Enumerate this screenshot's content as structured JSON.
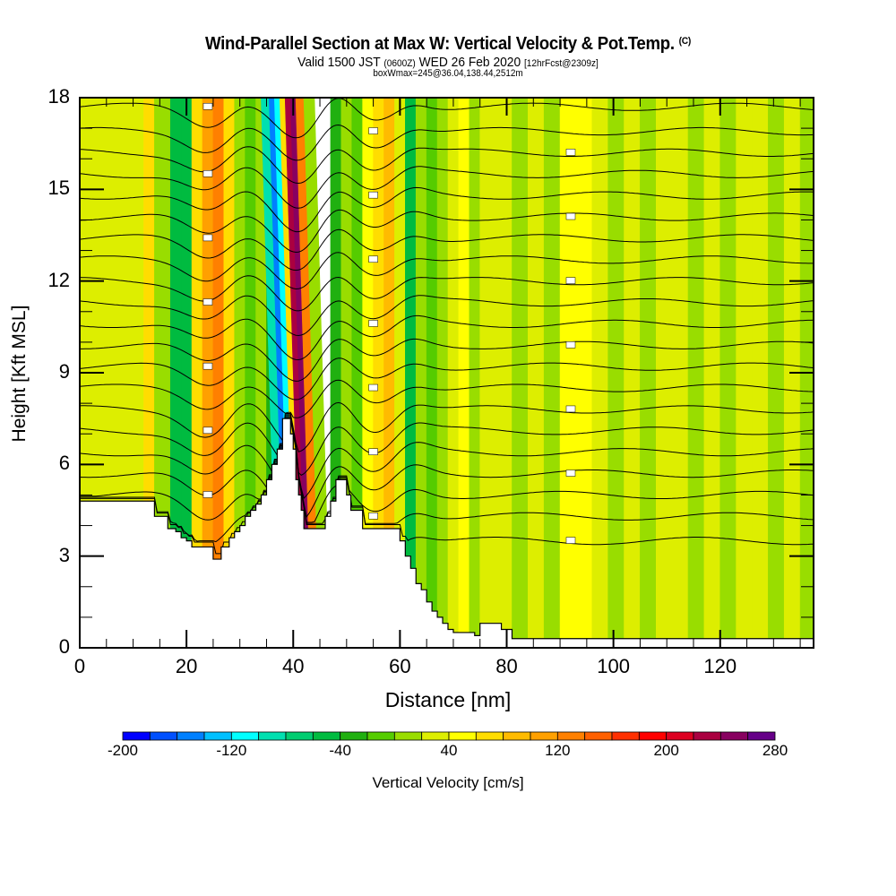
{
  "header": {
    "title": "Wind-Parallel Section at Max W: Vertical Velocity & Pot.Temp.",
    "copyright": "(C)",
    "valid_prefix": "Valid 1500 JST",
    "valid_utc": "(0600Z)",
    "valid_date": "WED 26 Feb 2020",
    "forecast": "[12hrFcst@2309z]",
    "box_info": "boxWmax=245@36.04,138.44,2512m"
  },
  "chart_data": {
    "type": "heatmap",
    "title": "Wind-Parallel Section at Max W: Vertical Velocity & Pot.Temp.",
    "xlabel": "Distance [nm]",
    "ylabel": "Height [Kft MSL]",
    "xlim": [
      0,
      137.5
    ],
    "ylim": [
      0,
      18
    ],
    "x_ticks": [
      "0",
      "20",
      "40",
      "60",
      "80",
      "100",
      "120"
    ],
    "x_tick_values": [
      0,
      20,
      40,
      60,
      80,
      100,
      120
    ],
    "x_minor_step": 5,
    "y_ticks": [
      "0",
      "3",
      "6",
      "9",
      "12",
      "15",
      "18"
    ],
    "y_tick_values": [
      0,
      3,
      6,
      9,
      12,
      15,
      18
    ],
    "y_minor_step": 1,
    "colorbar": {
      "label": "Vertical Velocity [cm/s]",
      "min": -200,
      "max": 280,
      "step": 20,
      "tick_labels": [
        "-200",
        "-120",
        "-40",
        "40",
        "120",
        "200",
        "280"
      ],
      "tick_values": [
        -200,
        -120,
        -40,
        40,
        120,
        200,
        280
      ],
      "colors": [
        "#0000ff",
        "#0050ff",
        "#0080ff",
        "#00c0ff",
        "#00ffff",
        "#00e0b0",
        "#00cc70",
        "#00bb40",
        "#20b010",
        "#55cc00",
        "#99dd00",
        "#ddee00",
        "#ffff00",
        "#ffdd00",
        "#ffbb00",
        "#ffa000",
        "#ff8000",
        "#ff6000",
        "#ff3000",
        "#ff0000",
        "#dd0020",
        "#aa0040",
        "#880060",
        "#660088"
      ]
    },
    "velocity_columns": {
      "x": [
        0,
        4,
        8,
        10,
        12,
        14,
        17,
        19,
        21,
        23,
        25,
        27,
        29,
        31,
        33,
        35,
        37,
        38.5,
        39.5,
        40.5,
        41.5,
        42.5,
        43.5,
        45,
        47,
        49,
        51,
        53,
        55,
        57,
        59,
        61,
        63,
        65,
        67,
        69,
        71,
        73,
        75,
        78,
        81,
        84,
        87,
        90,
        93,
        96,
        99,
        102,
        105,
        108,
        111,
        114,
        117,
        120,
        123,
        126,
        129,
        132,
        135,
        137.5
      ],
      "w": [
        20,
        20,
        20,
        30,
        60,
        0,
        -60,
        -60,
        60,
        100,
        120,
        60,
        0,
        -20,
        0,
        -40,
        -100,
        -160,
        -120,
        60,
        220,
        240,
        120,
        0,
        -40,
        0,
        -20,
        40,
        60,
        80,
        20,
        -60,
        0,
        -20,
        0,
        20,
        40,
        0,
        20,
        20,
        0,
        20,
        0,
        40,
        40,
        20,
        0,
        20,
        0,
        20,
        20,
        0,
        20,
        0,
        20,
        20,
        0,
        20,
        0,
        20
      ]
    },
    "terrain_kft": {
      "x": [
        0,
        5,
        10,
        13.5,
        14,
        15,
        16.5,
        17.5,
        18,
        19,
        20,
        21,
        22,
        23.5,
        24.5,
        25,
        25.5,
        26,
        26.5,
        27,
        28,
        29,
        30,
        31,
        32,
        33,
        34,
        35,
        36,
        37,
        38,
        38.8,
        39.5,
        40,
        40.5,
        41,
        41.5,
        42,
        43,
        43.5,
        44,
        45,
        46,
        47,
        48,
        48.5,
        49,
        50,
        50.8,
        52,
        53,
        53.5,
        54,
        55,
        56,
        57,
        58,
        59,
        60,
        61,
        62,
        63,
        64,
        65,
        66,
        67,
        68,
        69,
        70,
        71,
        72,
        73,
        74,
        75,
        76,
        77,
        78,
        79,
        80,
        81,
        82,
        83,
        84,
        100,
        120,
        137.5
      ],
      "h": [
        4.8,
        4.8,
        4.8,
        4.8,
        4.3,
        4.3,
        3.9,
        3.9,
        3.8,
        3.6,
        3.5,
        3.3,
        3.3,
        3.3,
        3.3,
        2.9,
        2.9,
        2.9,
        3.3,
        3.3,
        3.6,
        3.8,
        4.0,
        4.3,
        4.5,
        4.7,
        5.0,
        5.5,
        6.0,
        6.5,
        7.5,
        7.5,
        7.0,
        6.5,
        5.5,
        5.0,
        4.5,
        3.9,
        3.9,
        3.9,
        3.9,
        3.9,
        4.3,
        4.8,
        5.5,
        5.5,
        5.5,
        5.0,
        4.5,
        4.5,
        3.9,
        3.9,
        3.9,
        3.9,
        3.9,
        3.9,
        3.9,
        3.9,
        3.5,
        3.0,
        2.6,
        2.1,
        1.9,
        1.5,
        1.2,
        1.0,
        0.8,
        0.6,
        0.5,
        0.5,
        0.5,
        0.5,
        0.4,
        0.8,
        0.8,
        0.8,
        0.8,
        0.6,
        0.6,
        0.3,
        0.3,
        0.3,
        0.3,
        0.3,
        0.3,
        0.3
      ]
    },
    "contours": {
      "field": "Potential Temperature",
      "base_heights_kft": [
        17.7,
        16.9,
        16.2,
        15.5,
        14.8,
        14.1,
        13.4,
        12.7,
        12.0,
        11.3,
        10.6,
        9.9,
        9.2,
        8.5,
        7.8,
        7.1,
        6.4,
        5.7,
        5.0,
        4.3,
        3.5
      ],
      "wave_centers_nm": [
        24,
        41,
        55
      ],
      "wave_amplitudes_kft": [
        0.6,
        1.1,
        0.5
      ]
    }
  }
}
